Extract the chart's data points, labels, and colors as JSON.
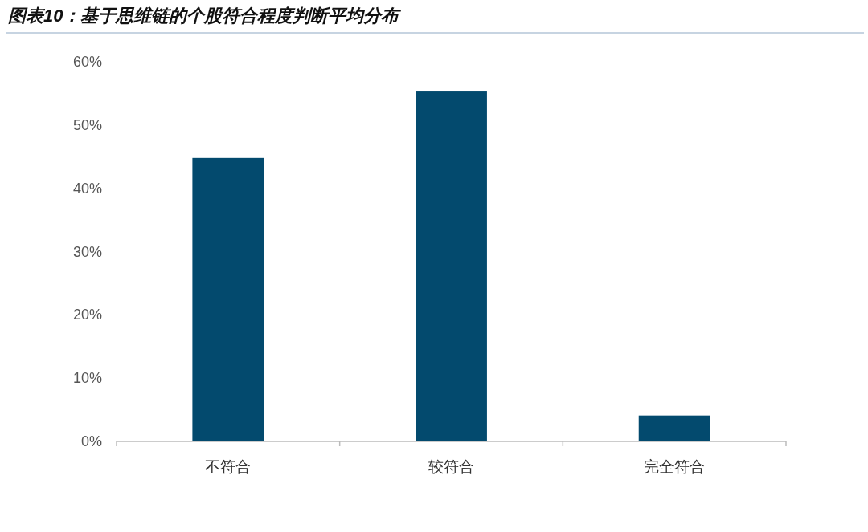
{
  "chart_data": {
    "type": "bar",
    "title": "图表10：基于思维链的个股符合程度判断平均分布",
    "categories": [
      "不符合",
      "较符合",
      "完全符合"
    ],
    "values": [
      44.8,
      55.3,
      4.1
    ],
    "color": "#034a6e",
    "ylim": [
      0,
      60
    ],
    "yticks": [
      {
        "value": 0,
        "label": "0%"
      },
      {
        "value": 10,
        "label": "10%"
      },
      {
        "value": 20,
        "label": "20%"
      },
      {
        "value": 30,
        "label": "30%"
      },
      {
        "value": 40,
        "label": "40%"
      },
      {
        "value": 50,
        "label": "50%"
      },
      {
        "value": 60,
        "label": "60%"
      }
    ]
  }
}
